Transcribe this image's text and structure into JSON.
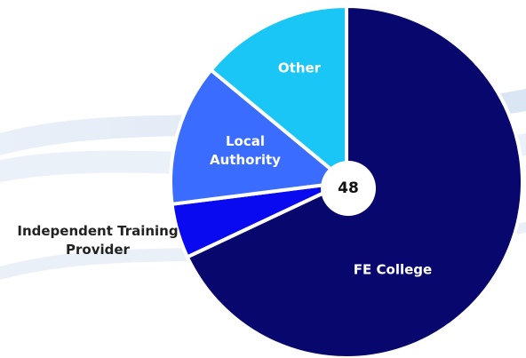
{
  "chart_data": {
    "type": "pie",
    "categories": [
      "FE College",
      "Independent Training Provider",
      "Local Authority",
      "Other"
    ],
    "values": [
      68,
      5,
      13,
      14
    ],
    "colors": [
      "#07076e",
      "#0a0af0",
      "#3a6cff",
      "#19c6f6"
    ],
    "center_label": "48"
  }
}
